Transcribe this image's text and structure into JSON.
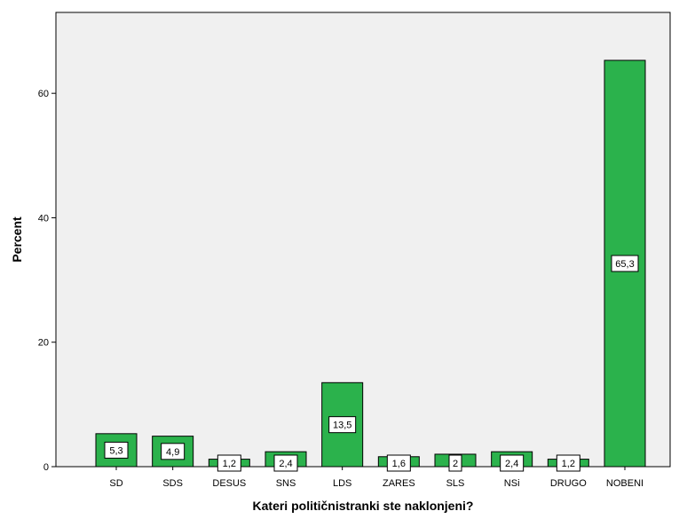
{
  "chart_data": {
    "type": "bar",
    "categories": [
      "SD",
      "SDS",
      "DESUS",
      "SNS",
      "LDS",
      "ZARES",
      "SLS",
      "NSi",
      "DRUGO",
      "NOBENI"
    ],
    "values": [
      5.3,
      4.9,
      1.2,
      2.4,
      13.5,
      1.6,
      2,
      2.4,
      1.2,
      65.3
    ],
    "data_labels": [
      "5,3",
      "4,9",
      "1,2",
      "2,4",
      "13,5",
      "1,6",
      "2",
      "2,4",
      "1,2",
      "65,3"
    ],
    "xlabel": "Kateri političnistranki ste naklonjeni?",
    "ylabel": "Percent",
    "yticks": [
      0,
      20,
      40,
      60
    ],
    "ylim": [
      0,
      73
    ],
    "grid": false,
    "colors": {
      "bar_fill": "#2bb24c",
      "bar_stroke": "#000000",
      "plot_background": "#f0f0f0",
      "axis": "#000000"
    }
  }
}
